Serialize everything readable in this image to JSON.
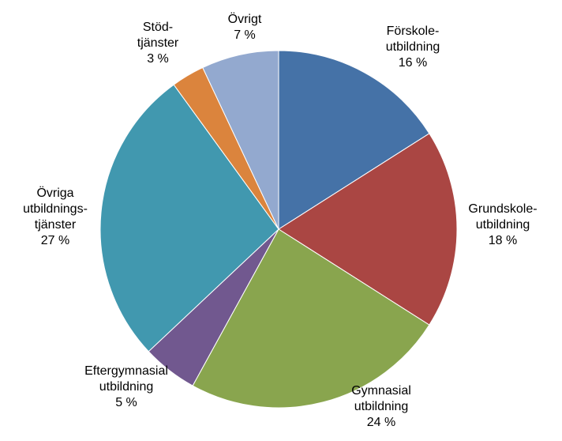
{
  "chart_data": {
    "type": "pie",
    "categories": [
      [
        "Förskole-",
        "utbildning"
      ],
      [
        "Grundskole-",
        "utbildning"
      ],
      [
        "Gymnasial",
        "utbildning"
      ],
      [
        "Eftergymnasial",
        "utbildning"
      ],
      [
        "Övriga",
        "utbildnings-",
        "tjänster"
      ],
      [
        "Stöd-",
        "tjänster"
      ],
      [
        "Övrigt"
      ]
    ],
    "values": [
      16,
      18,
      24,
      5,
      27,
      3,
      7
    ],
    "value_labels": [
      "16 %",
      "18 %",
      "24 %",
      "5 %",
      "27 %",
      "3 %",
      "7 %"
    ],
    "colors": [
      "#4572a7",
      "#aa4643",
      "#89a54e",
      "#71588f",
      "#4198af",
      "#db843d",
      "#93a9cf"
    ]
  }
}
